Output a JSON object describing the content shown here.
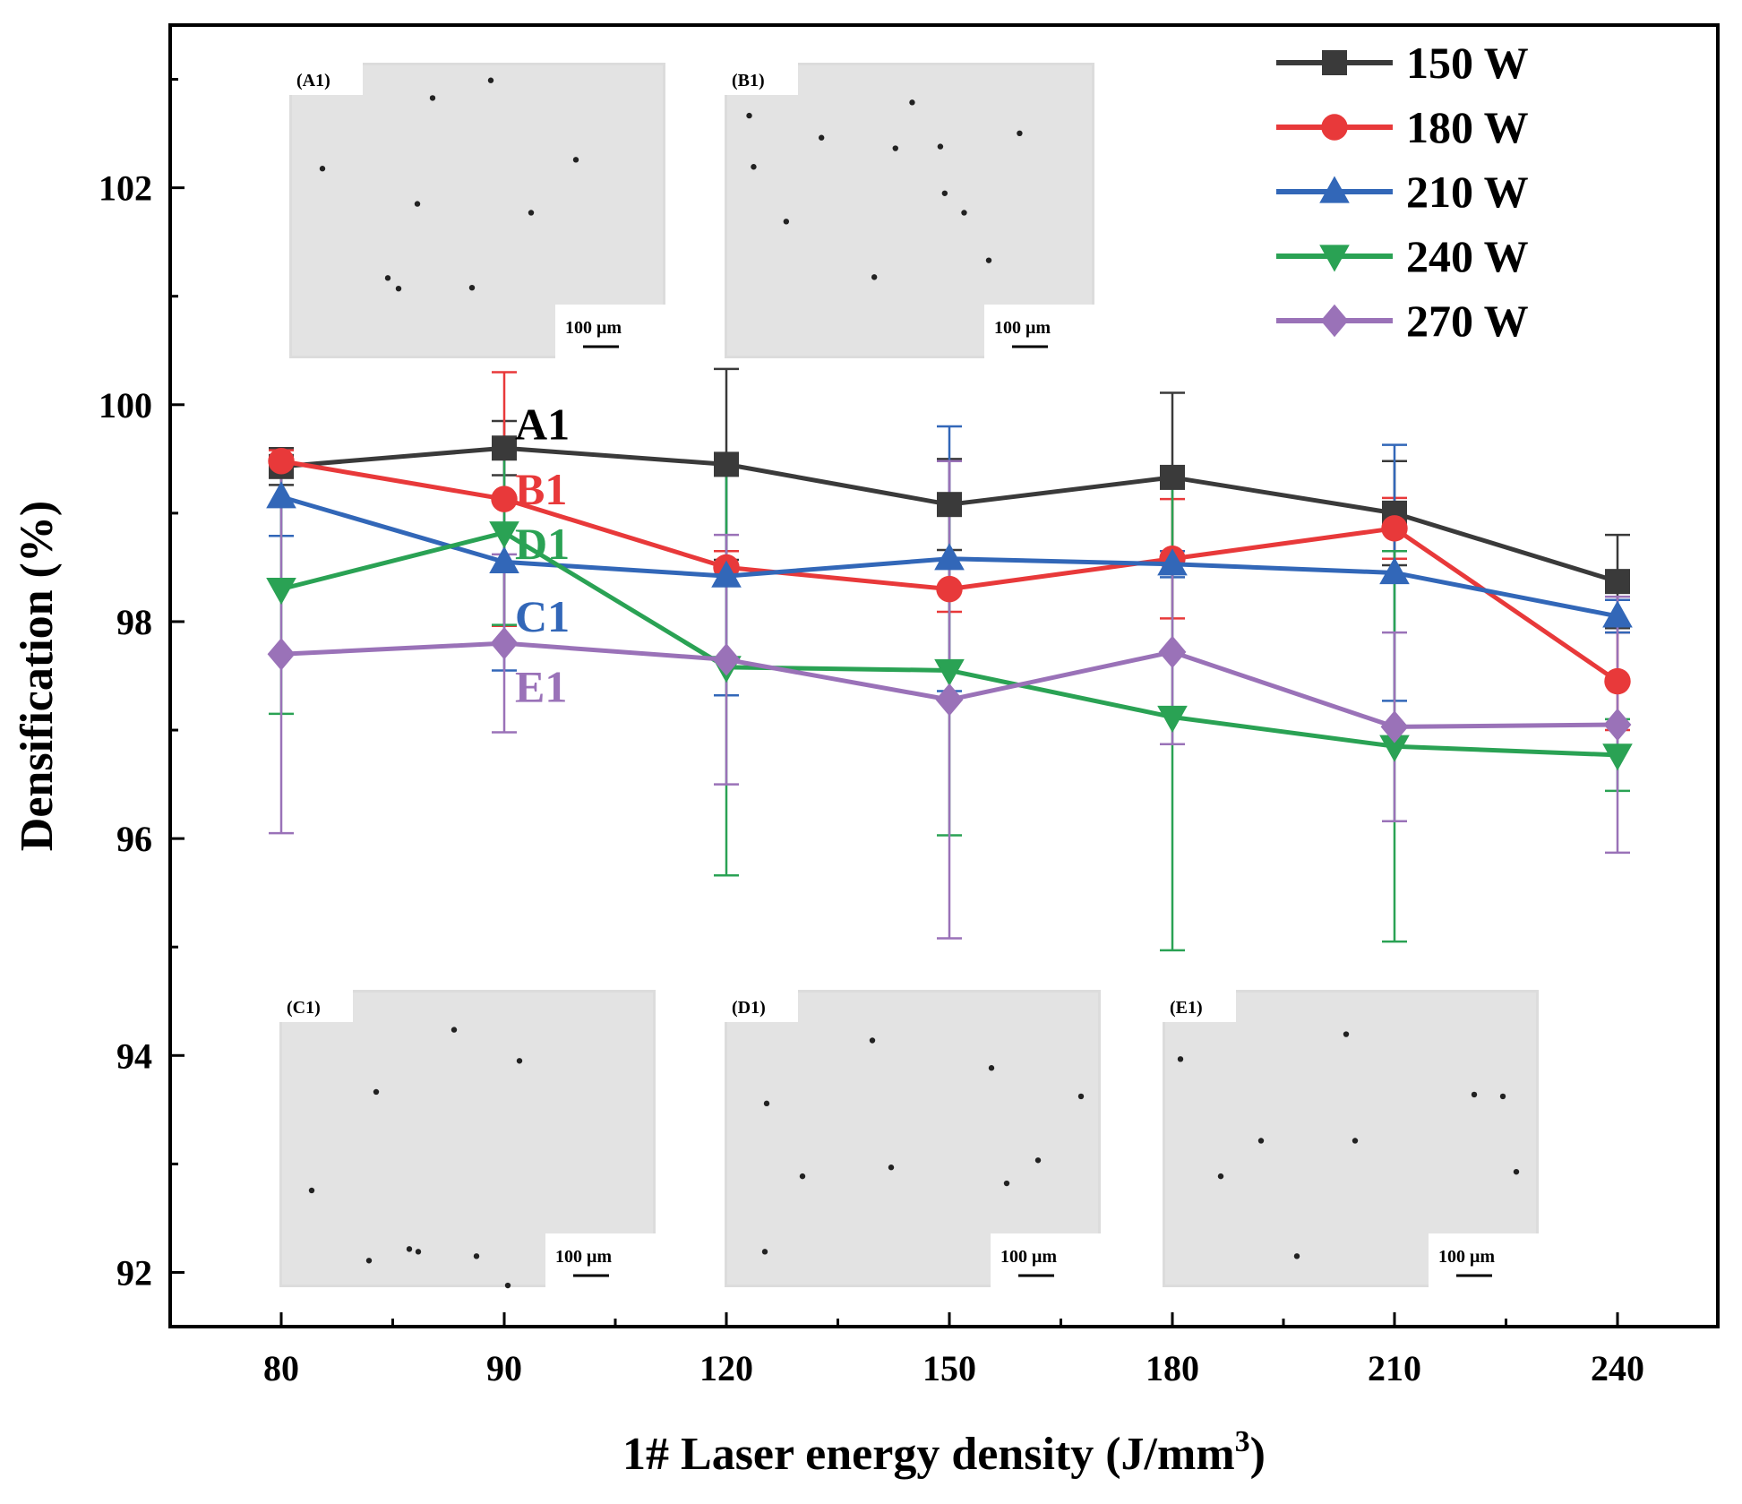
{
  "chart_data": {
    "type": "line",
    "xlabel": "1# Laser energy density (J/mm",
    "xlabel_superscript": "3",
    "xlabel_close": ")",
    "ylabel": "Densification (%)",
    "categories": [
      "80",
      "90",
      "120",
      "150",
      "180",
      "210",
      "240"
    ],
    "ylim": [
      91.5,
      103.5
    ],
    "yticks": [
      "92",
      "94",
      "96",
      "98",
      "100",
      "102"
    ],
    "legend_position": "top-right",
    "series": [
      {
        "name": "150 W",
        "color": "#3a3a3a",
        "marker": "square",
        "values": [
          99.43,
          99.6,
          99.45,
          99.08,
          99.33,
          99.0,
          98.37
        ],
        "errors": [
          0.17,
          0.25,
          0.88,
          0.42,
          0.78,
          0.48,
          0.43
        ]
      },
      {
        "name": "180 W",
        "color": "#e8393a",
        "marker": "circle",
        "values": [
          99.48,
          99.13,
          98.5,
          98.3,
          98.58,
          98.86,
          97.45
        ],
        "errors": [
          0.1,
          1.17,
          0.15,
          0.21,
          0.55,
          0.28,
          0.45
        ]
      },
      {
        "name": "210 W",
        "color": "#3267b8",
        "marker": "triangle-up",
        "values": [
          99.15,
          98.55,
          98.42,
          98.58,
          98.53,
          98.45,
          98.05
        ],
        "errors": [
          0.36,
          1.0,
          1.1,
          1.22,
          0.12,
          1.18,
          0.15
        ]
      },
      {
        "name": "240 W",
        "color": "#2aa254",
        "marker": "triangle-down",
        "values": [
          98.3,
          98.82,
          97.58,
          97.55,
          97.12,
          96.85,
          96.77
        ],
        "errors": [
          1.15,
          0.85,
          1.92,
          1.52,
          2.15,
          1.8,
          0.33
        ]
      },
      {
        "name": "270 W",
        "color": "#9a72b8",
        "marker": "diamond",
        "values": [
          97.7,
          97.8,
          97.65,
          97.28,
          97.72,
          97.03,
          97.05
        ],
        "errors": [
          1.65,
          0.82,
          1.15,
          2.2,
          0.85,
          0.87,
          1.18
        ]
      }
    ],
    "annotations": [
      {
        "text": "A1",
        "color": "#000000",
        "x": "90",
        "y": 99.82
      },
      {
        "text": "B1",
        "color": "#e8393a",
        "x": "90",
        "y": 99.22
      },
      {
        "text": "D1",
        "color": "#2aa254",
        "x": "90",
        "y": 98.72
      },
      {
        "text": "C1",
        "color": "#3267b8",
        "x": "90",
        "y": 98.05
      },
      {
        "text": "E1",
        "color": "#9a72b8",
        "x": "90",
        "y": 97.4
      }
    ],
    "insets": [
      {
        "label": "(A1)",
        "scale": "100 μm"
      },
      {
        "label": "(B1)",
        "scale": "100 μm"
      },
      {
        "label": "(C1)",
        "scale": "100 μm"
      },
      {
        "label": "(D1)",
        "scale": "100 μm"
      },
      {
        "label": "(E1)",
        "scale": "100 μm"
      }
    ]
  }
}
